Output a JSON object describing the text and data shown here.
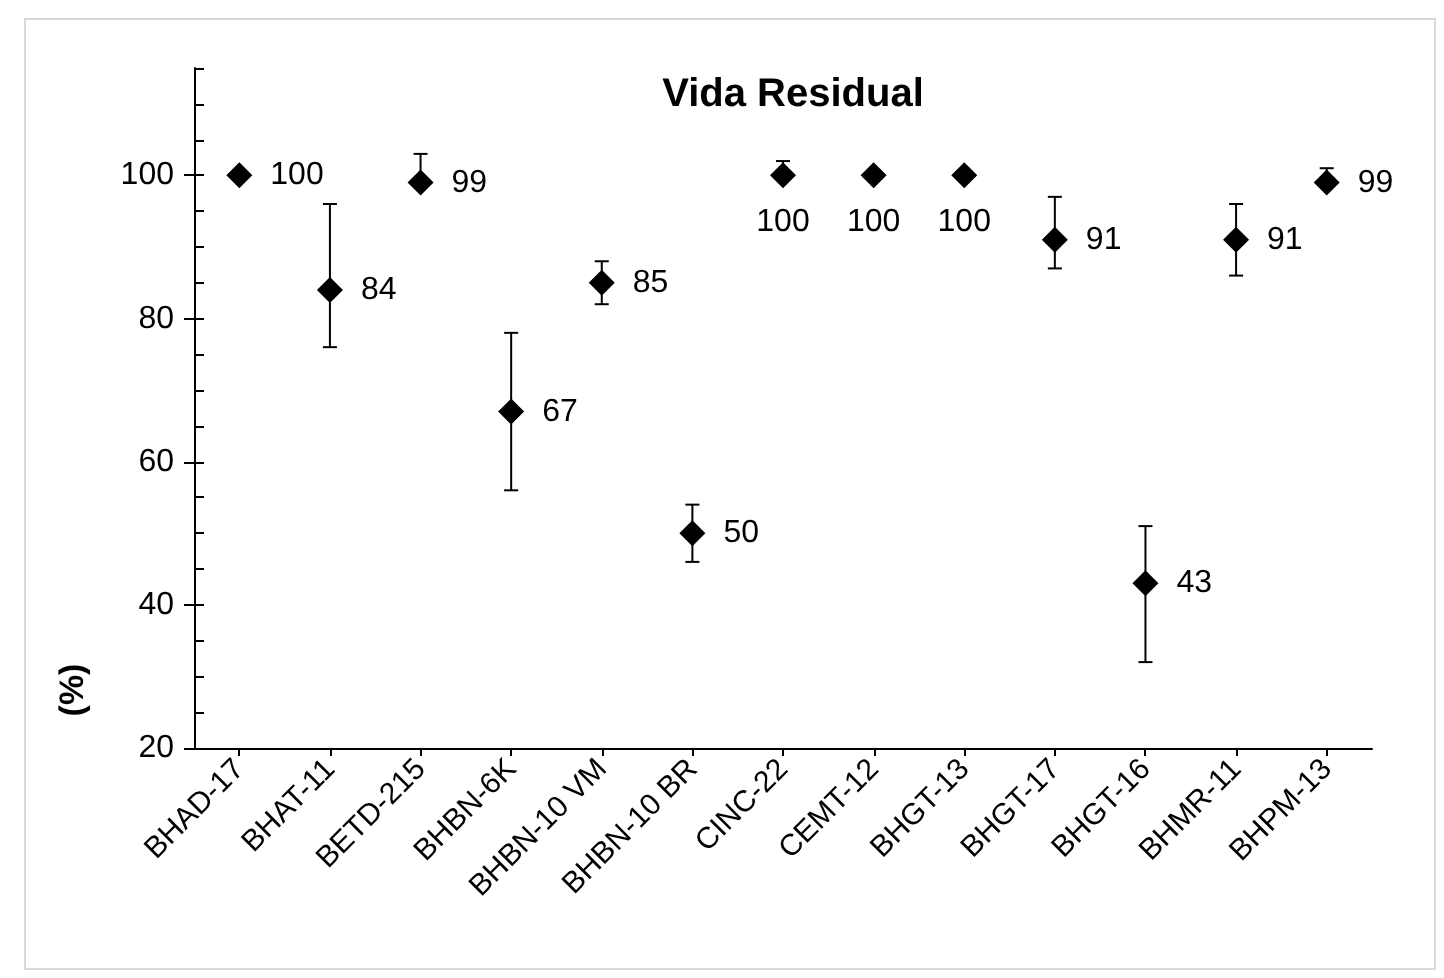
{
  "chart_data": {
    "type": "scatter",
    "title": "Vida Residual",
    "ylabel": "(%)",
    "categories": [
      "BHAD-17",
      "BHAT-11",
      "BETD-215",
      "BHBN-6K",
      "BHBN-10 VM",
      "BHBN-10 BR",
      "CINC-22",
      "CEMT-12",
      "BHGT-13",
      "BHGT-17",
      "BHGT-16",
      "BHMR-11",
      "BHPM-13"
    ],
    "values": [
      100,
      84,
      99,
      67,
      85,
      50,
      100,
      100,
      100,
      91,
      43,
      91,
      99
    ],
    "errors": [
      null,
      [
        76,
        96
      ],
      [
        99,
        103
      ],
      [
        56,
        78
      ],
      [
        82,
        88
      ],
      [
        46,
        54
      ],
      [
        100,
        102
      ],
      null,
      null,
      [
        87,
        97
      ],
      [
        32,
        51
      ],
      [
        86,
        96
      ],
      [
        99,
        101
      ]
    ],
    "color": "#000000",
    "ylim": [
      20,
      115
    ],
    "yticks": [
      20,
      40,
      60,
      80,
      100
    ],
    "marker": "diamond",
    "data_labels": true
  }
}
